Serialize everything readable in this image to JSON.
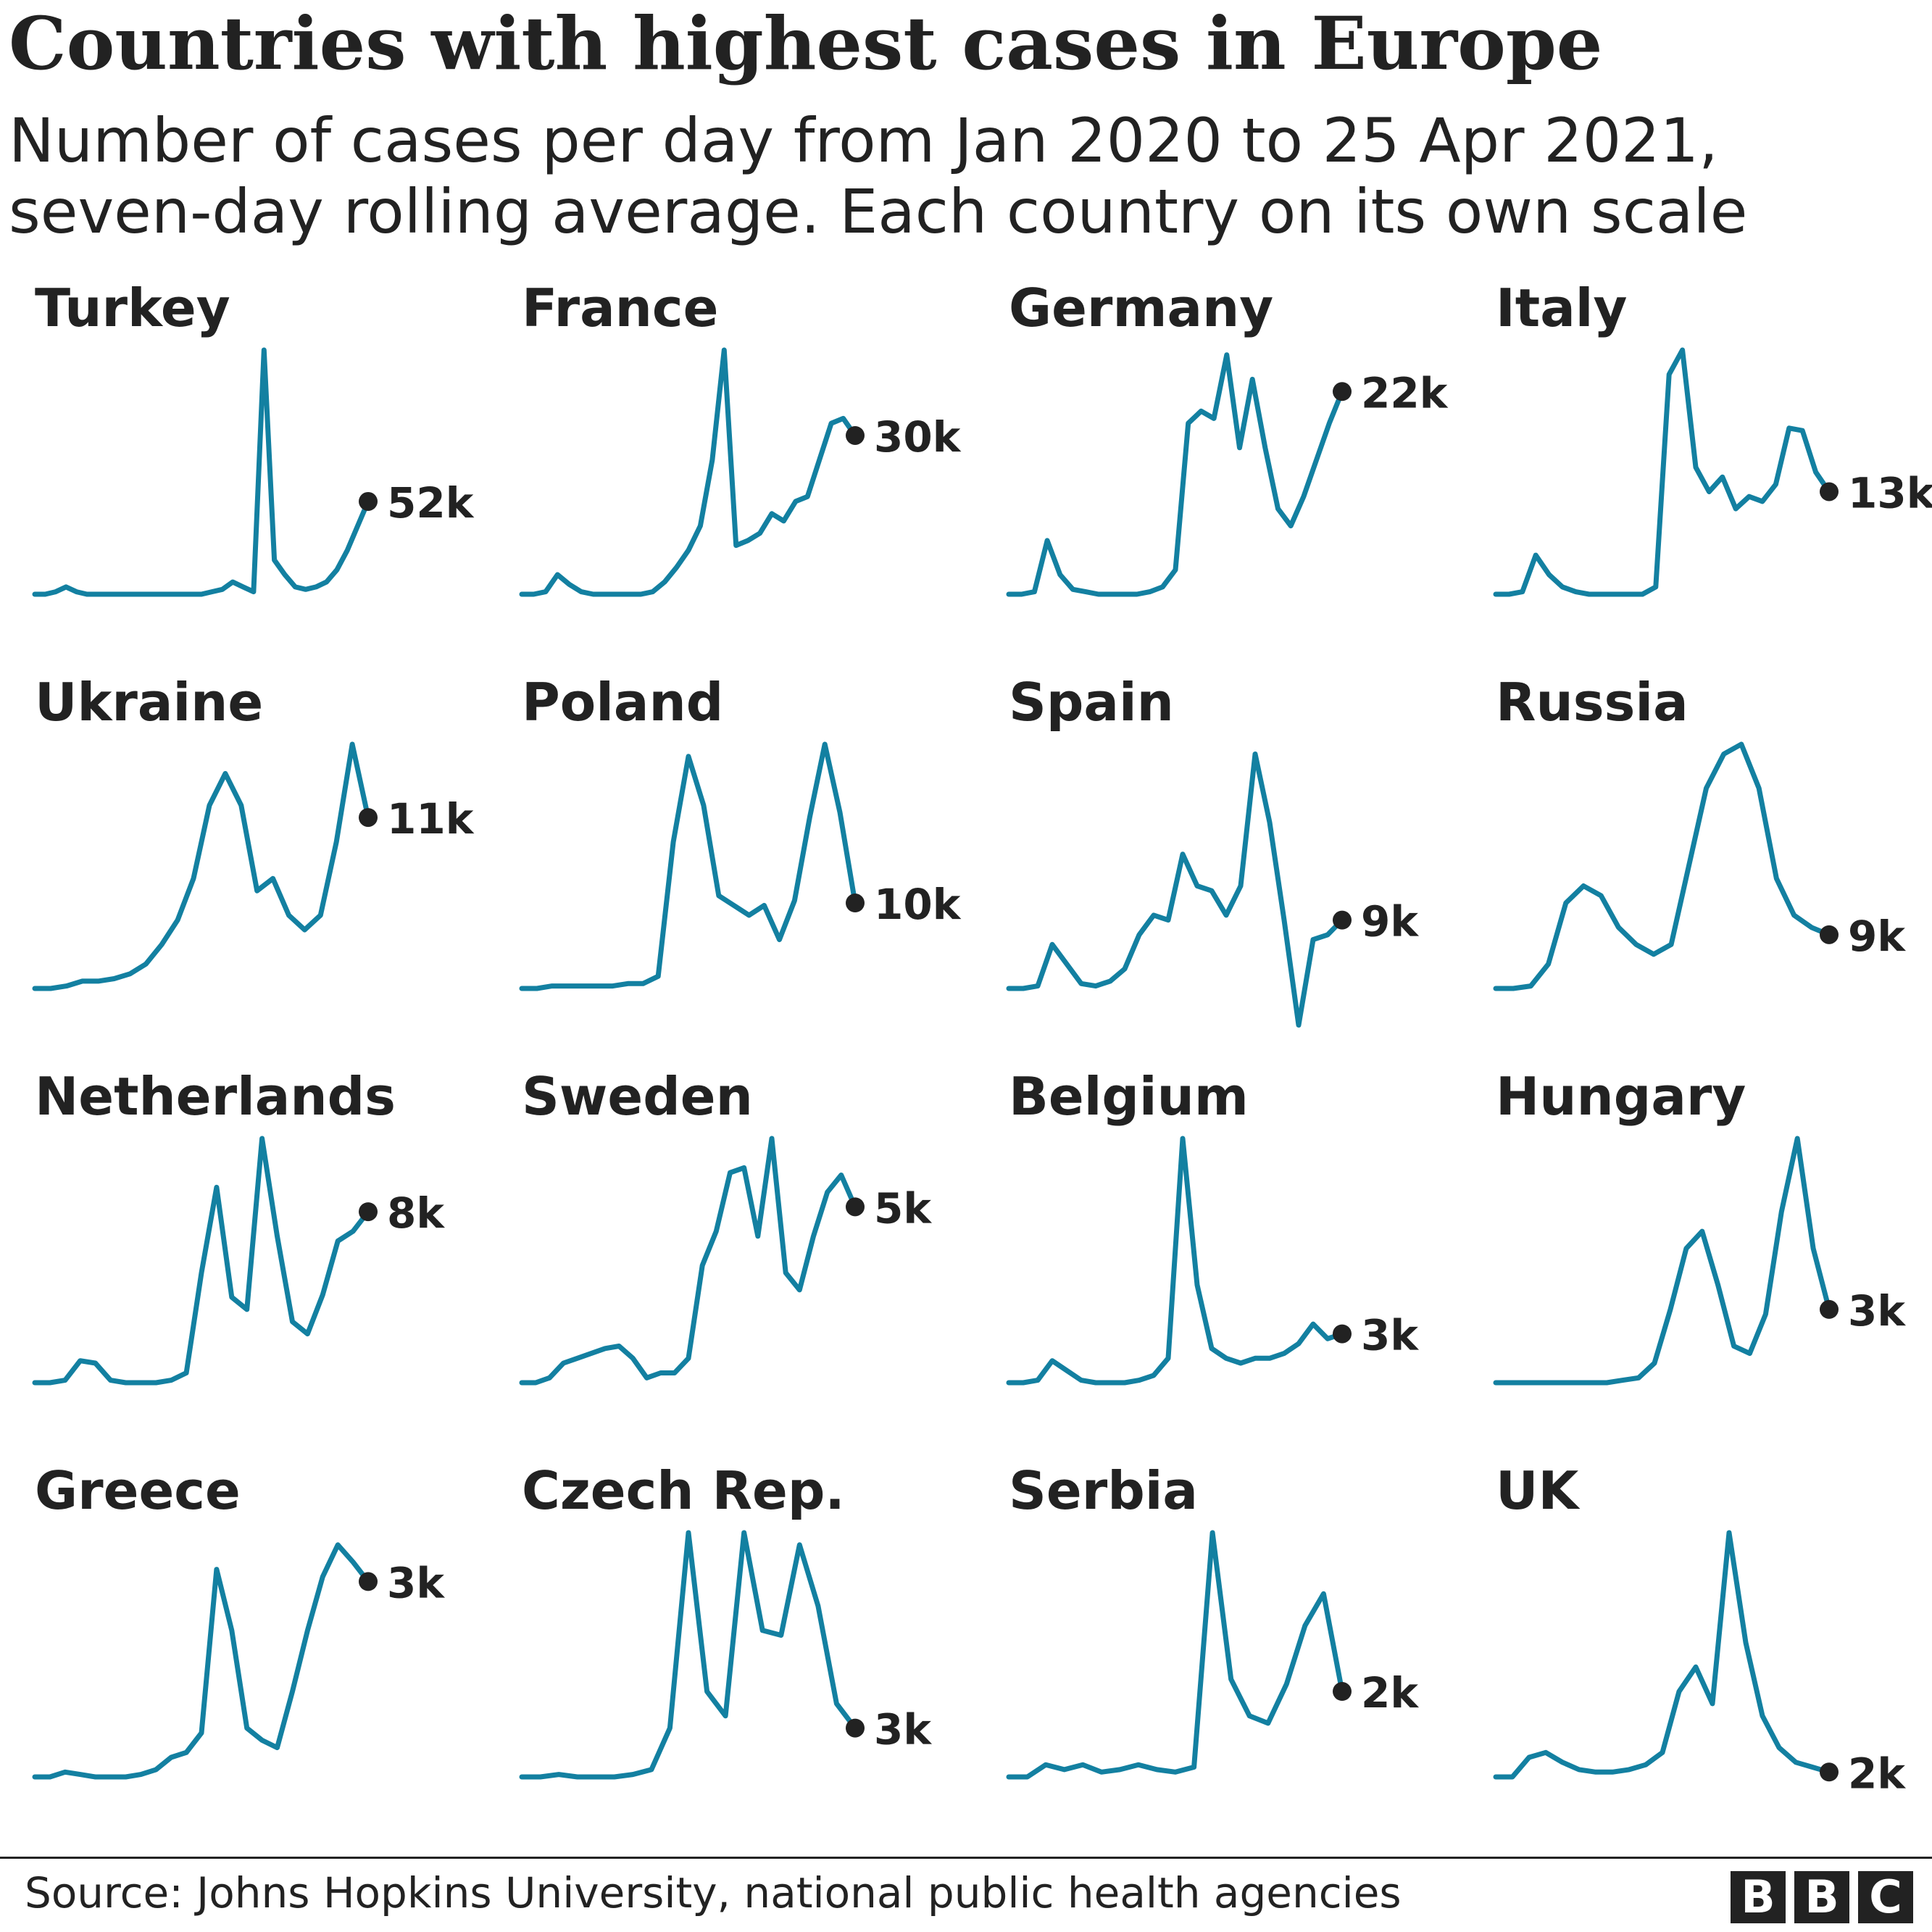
{
  "title": "Countries with highest cases in Europe",
  "subtitle": "Number of cases per day from Jan 2020 to 25 Apr 2021, seven-day rolling average. Each country on its own scale",
  "source": "Source: Johns Hopkins University, national public health agencies",
  "logo_letters": [
    "B",
    "B",
    "C"
  ],
  "colors": {
    "line": "#1380A1",
    "dot": "#222222",
    "text": "#222222"
  },
  "chart_data": {
    "type": "line",
    "x_range": [
      "Jan 2020",
      "25 Apr 2021"
    ],
    "shared_x_sample_count": 24,
    "series": [
      {
        "name": "Turkey",
        "latest_label": "52k",
        "values": [
          0,
          0,
          1,
          3,
          1,
          0,
          0,
          0,
          0,
          0,
          0,
          0,
          0,
          0,
          0,
          0,
          0,
          1,
          2,
          5,
          3,
          1,
          100,
          14,
          8,
          3,
          2,
          3,
          5,
          10,
          18,
          28,
          38
        ]
      },
      {
        "name": "France",
        "latest_label": "30k",
        "values": [
          0,
          0,
          1,
          8,
          4,
          1,
          0,
          0,
          0,
          0,
          0,
          1,
          5,
          11,
          18,
          28,
          55,
          100,
          20,
          22,
          25,
          33,
          30,
          38,
          40,
          55,
          70,
          72,
          65
        ]
      },
      {
        "name": "Germany",
        "latest_label": "22k",
        "values": [
          0,
          0,
          1,
          22,
          8,
          2,
          1,
          0,
          0,
          0,
          0,
          1,
          3,
          10,
          70,
          75,
          72,
          98,
          60,
          88,
          60,
          35,
          28,
          40,
          55,
          70,
          83
        ]
      },
      {
        "name": "Italy",
        "latest_label": "13k",
        "values": [
          0,
          0,
          1,
          16,
          8,
          3,
          1,
          0,
          0,
          0,
          0,
          0,
          3,
          90,
          100,
          52,
          42,
          48,
          35,
          40,
          38,
          45,
          68,
          67,
          50,
          42
        ]
      },
      {
        "name": "Ukraine",
        "latest_label": "11k",
        "values": [
          0,
          0,
          1,
          3,
          3,
          4,
          6,
          10,
          18,
          28,
          45,
          75,
          88,
          75,
          40,
          45,
          30,
          24,
          30,
          60,
          100,
          70
        ]
      },
      {
        "name": "Poland",
        "latest_label": "10k",
        "values": [
          0,
          0,
          1,
          1,
          1,
          1,
          1,
          2,
          2,
          5,
          60,
          95,
          75,
          38,
          34,
          30,
          34,
          20,
          36,
          70,
          100,
          72,
          35
        ]
      },
      {
        "name": "Spain",
        "latest_label": "9k",
        "values": [
          0,
          0,
          1,
          18,
          10,
          2,
          1,
          3,
          8,
          22,
          30,
          28,
          55,
          42,
          40,
          30,
          42,
          96,
          68,
          28,
          -15,
          20,
          22,
          28
        ]
      },
      {
        "name": "Russia",
        "latest_label": "9k",
        "values": [
          0,
          0,
          1,
          10,
          35,
          42,
          38,
          25,
          18,
          14,
          18,
          50,
          82,
          96,
          100,
          82,
          45,
          30,
          25,
          22
        ]
      },
      {
        "name": "Netherlands",
        "latest_label": "8k",
        "values": [
          0,
          0,
          1,
          9,
          8,
          1,
          0,
          0,
          0,
          1,
          4,
          45,
          80,
          35,
          30,
          100,
          60,
          25,
          20,
          36,
          58,
          62,
          70
        ]
      },
      {
        "name": "Sweden",
        "latest_label": "5k",
        "values": [
          0,
          0,
          2,
          8,
          10,
          12,
          14,
          15,
          10,
          2,
          4,
          4,
          10,
          48,
          62,
          86,
          88,
          60,
          100,
          45,
          38,
          60,
          78,
          85,
          72
        ]
      },
      {
        "name": "Belgium",
        "latest_label": "3k",
        "values": [
          0,
          0,
          1,
          9,
          5,
          1,
          0,
          0,
          0,
          1,
          3,
          10,
          100,
          40,
          14,
          10,
          8,
          10,
          10,
          12,
          16,
          24,
          18,
          20
        ]
      },
      {
        "name": "Hungary",
        "latest_label": "3k",
        "values": [
          0,
          0,
          0,
          0,
          0,
          0,
          0,
          0,
          1,
          2,
          8,
          30,
          55,
          62,
          40,
          15,
          12,
          28,
          70,
          100,
          55,
          30
        ]
      },
      {
        "name": "Greece",
        "latest_label": "3k",
        "values": [
          0,
          0,
          2,
          1,
          0,
          0,
          0,
          1,
          3,
          8,
          10,
          18,
          85,
          60,
          20,
          15,
          12,
          35,
          60,
          82,
          95,
          88,
          80
        ]
      },
      {
        "name": "Czech Rep.",
        "latest_label": "3k",
        "values": [
          0,
          0,
          1,
          0,
          0,
          0,
          1,
          3,
          20,
          100,
          35,
          25,
          100,
          60,
          58,
          95,
          70,
          30,
          20
        ]
      },
      {
        "name": "Serbia",
        "latest_label": "2k",
        "values": [
          0,
          0,
          5,
          3,
          5,
          2,
          3,
          5,
          3,
          2,
          4,
          100,
          40,
          25,
          22,
          38,
          62,
          75,
          35
        ]
      },
      {
        "name": "UK",
        "latest_label": "2k",
        "values": [
          0,
          0,
          8,
          10,
          6,
          3,
          2,
          2,
          3,
          5,
          10,
          35,
          45,
          30,
          100,
          55,
          25,
          12,
          6,
          4,
          2
        ]
      }
    ]
  }
}
